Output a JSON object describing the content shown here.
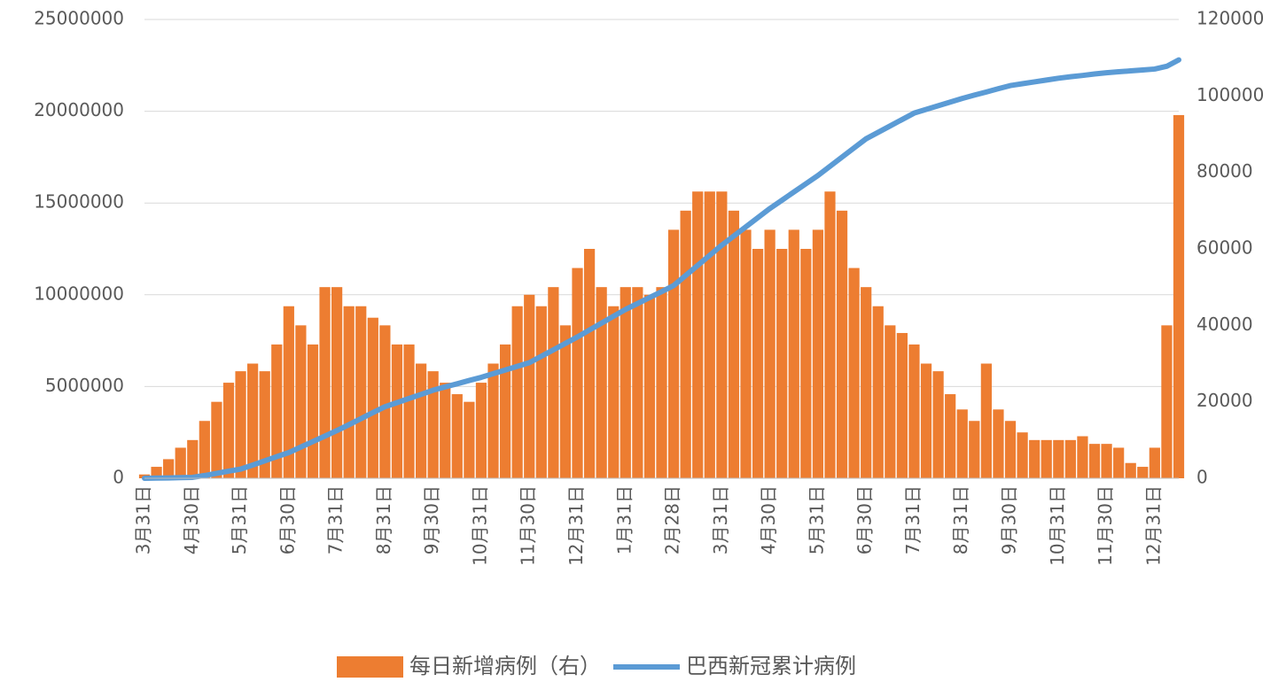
{
  "chart_data": {
    "type": "combo",
    "categories": [
      "3月31日",
      null,
      null,
      null,
      "4月30日",
      null,
      null,
      null,
      "5月31日",
      null,
      null,
      null,
      "6月30日",
      null,
      null,
      null,
      "7月31日",
      null,
      null,
      null,
      "8月31日",
      null,
      null,
      null,
      "9月30日",
      null,
      null,
      null,
      "10月31日",
      null,
      null,
      null,
      "11月30日",
      null,
      null,
      null,
      "12月31日",
      null,
      null,
      null,
      "1月31日",
      null,
      null,
      null,
      "2月28日",
      null,
      null,
      null,
      "3月31日",
      null,
      null,
      null,
      "4月30日",
      null,
      null,
      null,
      "5月31日",
      null,
      null,
      null,
      "6月30日",
      null,
      null,
      null,
      "7月31日",
      null,
      null,
      null,
      "8月31日",
      null,
      null,
      null,
      "9月30日",
      null,
      null,
      null,
      "10月31日",
      null,
      null,
      null,
      "11月30日",
      null,
      null,
      null,
      "12月31日",
      null,
      null
    ],
    "series": [
      {
        "name": "每日新增病例（右）",
        "type": "bar",
        "axis": "y2",
        "color": "#ed7d31",
        "values": [
          1000,
          3000,
          5000,
          8000,
          10000,
          15000,
          20000,
          25000,
          28000,
          30000,
          28000,
          35000,
          45000,
          40000,
          35000,
          50000,
          50000,
          45000,
          45000,
          42000,
          40000,
          35000,
          35000,
          30000,
          28000,
          25000,
          22000,
          20000,
          25000,
          30000,
          35000,
          45000,
          48000,
          45000,
          50000,
          40000,
          55000,
          60000,
          50000,
          45000,
          50000,
          50000,
          48000,
          50000,
          65000,
          70000,
          75000,
          75000,
          75000,
          70000,
          65000,
          60000,
          65000,
          60000,
          65000,
          60000,
          65000,
          75000,
          70000,
          55000,
          50000,
          45000,
          40000,
          38000,
          35000,
          30000,
          28000,
          22000,
          18000,
          15000,
          30000,
          18000,
          15000,
          12000,
          10000,
          10000,
          10000,
          10000,
          11000,
          9000,
          9000,
          8000,
          4000,
          3000,
          8000,
          40000,
          95000
        ]
      },
      {
        "name": "巴西新冠累计病例",
        "type": "line",
        "color": "#5b9bd5",
        "values": [
          0,
          10000,
          20000,
          35000,
          50000,
          150000,
          270000,
          390000,
          500000,
          720000,
          950000,
          1180000,
          1400000,
          1700000,
          2000000,
          2300000,
          2600000,
          2920000,
          3250000,
          3580000,
          3900000,
          4120000,
          4350000,
          4570000,
          4800000,
          4980000,
          5150000,
          5330000,
          5500000,
          5700000,
          5900000,
          6100000,
          6300000,
          6650000,
          7000000,
          7350000,
          7700000,
          8080000,
          8450000,
          8830000,
          9200000,
          9520000,
          9850000,
          10170000,
          10500000,
          11050000,
          11600000,
          12150000,
          12700000,
          13200000,
          13700000,
          14200000,
          14700000,
          15150000,
          15600000,
          16050000,
          16500000,
          17000000,
          17500000,
          18000000,
          18500000,
          18850000,
          19200000,
          19550000,
          19900000,
          20100000,
          20300000,
          20500000,
          20700000,
          20880000,
          21050000,
          21230000,
          21400000,
          21500000,
          21600000,
          21700000,
          21800000,
          21880000,
          21950000,
          22030000,
          22100000,
          22150000,
          22200000,
          22250000,
          22300000,
          22450000,
          22800000
        ]
      }
    ],
    "ylim": [
      0,
      25000000
    ],
    "yticks": [
      0,
      5000000,
      10000000,
      15000000,
      20000000,
      25000000
    ],
    "y2lim": [
      0,
      120000
    ],
    "y2ticks": [
      0,
      20000,
      40000,
      60000,
      80000,
      100000,
      120000
    ],
    "grid": true
  }
}
